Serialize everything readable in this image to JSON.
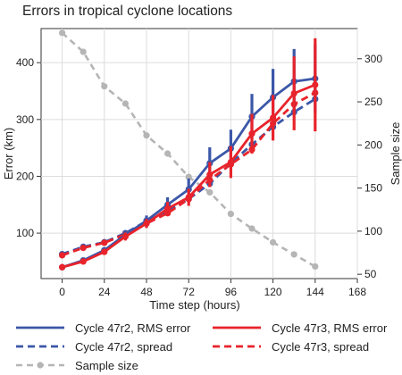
{
  "chart_data": {
    "type": "line",
    "title": "Errors in tropical cyclone locations",
    "xlabel": "Time step (hours)",
    "ylabel": "Error (km)",
    "y2label": "Sample size",
    "xlim": [
      -12,
      168
    ],
    "ylim": [
      20,
      460
    ],
    "y2lim": [
      45,
      335
    ],
    "xticks": [
      0,
      24,
      48,
      72,
      96,
      120,
      144,
      168
    ],
    "yticks": [
      100,
      200,
      300,
      400
    ],
    "y2ticks": [
      50,
      100,
      150,
      200,
      250,
      300
    ],
    "grid": true,
    "legend_position": "bottom",
    "x": [
      0,
      12,
      24,
      36,
      48,
      60,
      72,
      84,
      96,
      108,
      120,
      132,
      144
    ],
    "series": [
      {
        "name": "Cycle 47r2, RMS error",
        "axis": "left",
        "color": "#3b57a8",
        "style": "solid",
        "marker": true,
        "values": [
          40,
          52,
          70,
          97,
          122,
          150,
          177,
          223,
          249,
          305,
          339,
          367,
          372
        ],
        "error": [
          3,
          4,
          5,
          7,
          9,
          13,
          19,
          28,
          33,
          40,
          50,
          57,
          60
        ]
      },
      {
        "name": "Cycle 47r3, RMS error",
        "axis": "left",
        "color": "#e8232b",
        "style": "solid",
        "marker": true,
        "values": [
          40,
          50,
          67,
          94,
          117,
          143,
          163,
          203,
          225,
          275,
          303,
          346,
          361
        ],
        "error": [
          3,
          4,
          5,
          7,
          8,
          12,
          15,
          22,
          28,
          35,
          40,
          65,
          82
        ]
      },
      {
        "name": "Cycle 47r2, spread",
        "axis": "left",
        "color": "#3b57a8",
        "style": "dashed",
        "marker": true,
        "values": [
          63,
          76,
          84,
          100,
          121,
          139,
          160,
          187,
          223,
          256,
          287,
          313,
          336
        ]
      },
      {
        "name": "Cycle 47r3, spread",
        "axis": "left",
        "color": "#e8232b",
        "style": "dashed",
        "marker": true,
        "values": [
          61,
          74,
          83,
          98,
          117,
          135,
          160,
          194,
          221,
          247,
          293,
          327,
          347
        ]
      },
      {
        "name": "Sample size",
        "axis": "right",
        "color": "#b5b5b5",
        "style": "dashed",
        "marker": true,
        "values": [
          330,
          308,
          268,
          248,
          211,
          190,
          163,
          145,
          120,
          103,
          87,
          73,
          59
        ]
      }
    ]
  }
}
